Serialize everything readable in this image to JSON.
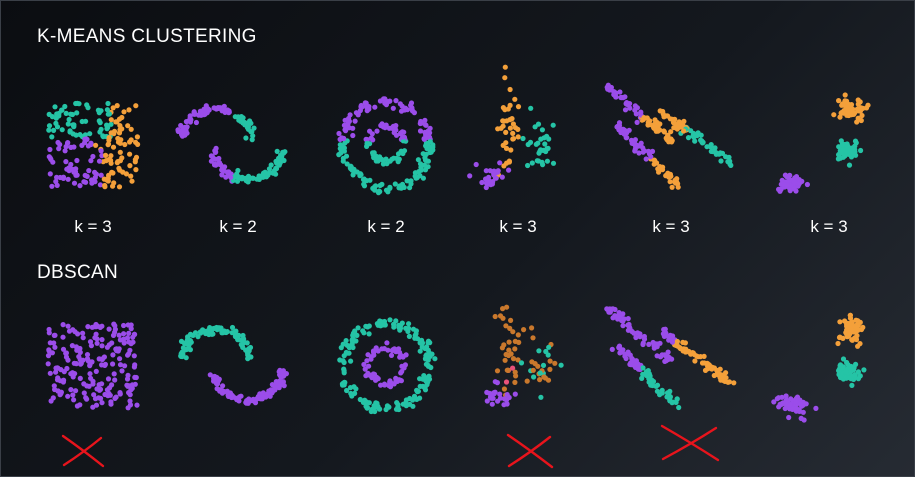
{
  "kmeans": {
    "title": "K-MEANS CLUSTERING",
    "k_labels": [
      "k = 3",
      "k = 2",
      "k = 2",
      "k = 3",
      "k = 3",
      "k = 3"
    ]
  },
  "dbscan": {
    "title": "DBSCAN"
  },
  "datasets": [
    "uniform-square",
    "two-moons",
    "concentric-circles",
    "irregular-blobs",
    "parallel-stripes",
    "three-blobs"
  ],
  "dbscan_failures": [
    "uniform-square",
    "irregular-blobs",
    "parallel-stripes"
  ],
  "colors": {
    "purple": "#9b4dea",
    "teal": "#25c4a6",
    "orange": "#f4a03a",
    "brown": "#c9782c",
    "pink": "#e8527a",
    "cross_red": "#e8141c"
  }
}
